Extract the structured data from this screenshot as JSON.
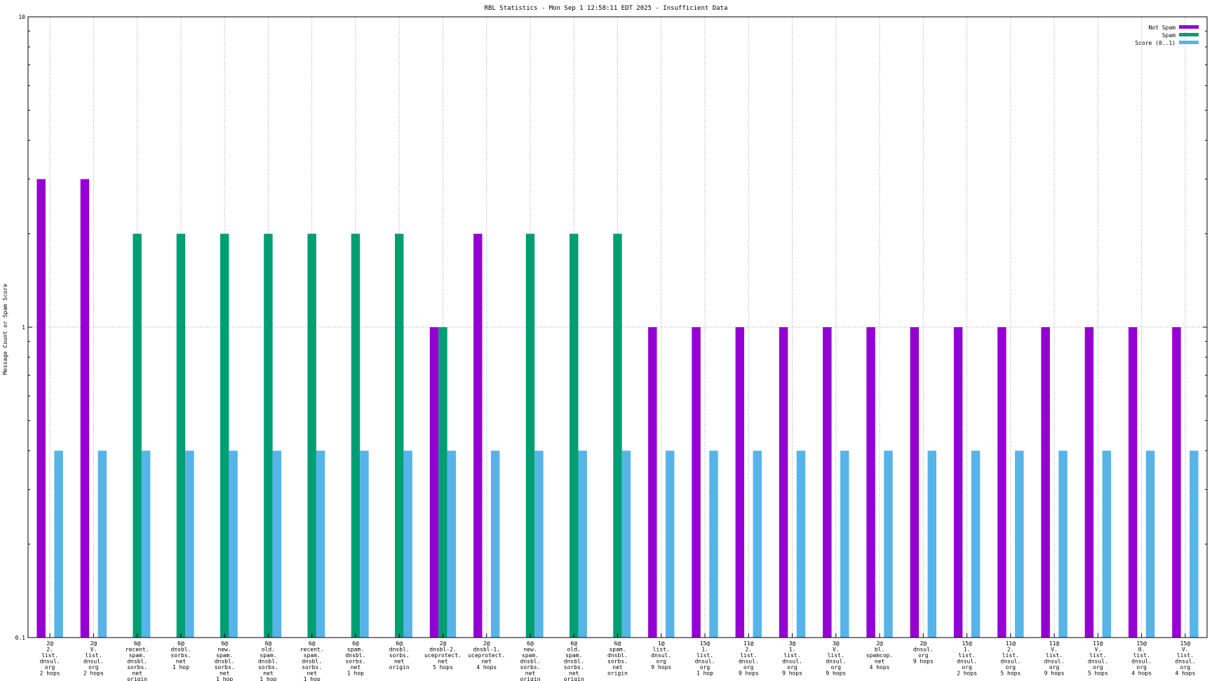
{
  "chart_data": {
    "type": "bar",
    "title": "RBL Statistics - Mon Sep  1 12:58:11 EDT 2025 - Insufficient Data",
    "ylabel": "Message Count or Spam Score",
    "xlabel": "",
    "yscale": "log",
    "ylim": [
      0.1,
      10
    ],
    "yticks": [
      "10",
      "1",
      "0.1"
    ],
    "grid": true,
    "legend_position": "top-right",
    "categories": [
      [
        "2@",
        "2.",
        "list.",
        "dnsul.",
        "org",
        "2 hops"
      ],
      [
        "2@",
        "V.",
        "list.",
        "dnsul.",
        "org",
        "2 hops"
      ],
      [
        "6@",
        "recent.",
        "spam.",
        "dnsbl.",
        "sorbs.",
        "net",
        "origin"
      ],
      [
        "6@",
        "dnsbl.",
        "sorbs.",
        "net",
        "1 hop"
      ],
      [
        "6@",
        "new.",
        "spam.",
        "dnsbl.",
        "sorbs.",
        "net",
        "1 hop"
      ],
      [
        "6@",
        "old.",
        "spam.",
        "dnsbl.",
        "sorbs.",
        "net",
        "1 hop"
      ],
      [
        "6@",
        "recent.",
        "spam.",
        "dnsbl.",
        "sorbs.",
        "net",
        "1 hop"
      ],
      [
        "6@",
        "spam.",
        "dnsbl.",
        "sorbs.",
        "net",
        "1 hop"
      ],
      [
        "6@",
        "dnsbl.",
        "sorbs.",
        "net",
        "origin"
      ],
      [
        "2@",
        "dnsbl-2.",
        "uceprotect.",
        "net",
        "5 hops"
      ],
      [
        "2@",
        "dnsbl-1.",
        "uceprotect.",
        "net",
        "4 hops"
      ],
      [
        "6@",
        "new.",
        "spam.",
        "dnsbl.",
        "sorbs.",
        "net",
        "origin"
      ],
      [
        "6@",
        "old.",
        "spam.",
        "dnsbl.",
        "sorbs.",
        "net",
        "origin"
      ],
      [
        "6@",
        "spam.",
        "dnsbl.",
        "sorbs.",
        "net",
        "origin"
      ],
      [
        "1@",
        "list.",
        "dnsul.",
        "org",
        "9 hops"
      ],
      [
        "15@",
        "1.",
        "list.",
        "dnsul.",
        "org",
        "1 hop"
      ],
      [
        "11@",
        "2.",
        "list.",
        "dnsul.",
        "org",
        "9 hops"
      ],
      [
        "3@",
        "1.",
        "list.",
        "dnsul.",
        "org",
        "9 hops"
      ],
      [
        "3@",
        "V.",
        "list.",
        "dnsul.",
        "org",
        "9 hops"
      ],
      [
        "2@",
        "bl.",
        "spamcop.",
        "net",
        "4 hops"
      ],
      [
        "2@",
        "dnsul.",
        "org",
        "9 hops"
      ],
      [
        "15@",
        "1.",
        "list.",
        "dnsul.",
        "org",
        "2 hops"
      ],
      [
        "11@",
        "2.",
        "list.",
        "dnsul.",
        "org",
        "5 hops"
      ],
      [
        "11@",
        "V.",
        "list.",
        "dnsul.",
        "org",
        "9 hops"
      ],
      [
        "11@",
        "V.",
        "list.",
        "dnsul.",
        "org",
        "5 hops"
      ],
      [
        "15@",
        "0.",
        "list.",
        "dnsul.",
        "org",
        "4 hops"
      ],
      [
        "15@",
        "V.",
        "list.",
        "dnsul.",
        "org",
        "4 hops"
      ]
    ],
    "series": [
      {
        "name": "Not Spam",
        "color": "#9400d3",
        "values": [
          3,
          3,
          null,
          null,
          null,
          null,
          null,
          null,
          null,
          1,
          2,
          null,
          null,
          null,
          1,
          1,
          1,
          1,
          1,
          1,
          1,
          1,
          1,
          1,
          1,
          1,
          1
        ]
      },
      {
        "name": "Spam",
        "color": "#009e73",
        "values": [
          null,
          null,
          2,
          2,
          2,
          2,
          2,
          2,
          2,
          1,
          null,
          2,
          2,
          2,
          null,
          null,
          null,
          null,
          null,
          null,
          null,
          null,
          null,
          null,
          null,
          null,
          null
        ]
      },
      {
        "name": "Score (0..1)",
        "color": "#56b4e9",
        "values": [
          0.4,
          0.4,
          0.4,
          0.4,
          0.4,
          0.4,
          0.4,
          0.4,
          0.4,
          0.4,
          0.4,
          0.4,
          0.4,
          0.4,
          0.4,
          0.4,
          0.4,
          0.4,
          0.4,
          0.4,
          0.4,
          0.4,
          0.4,
          0.4,
          0.4,
          0.4,
          0.4
        ]
      }
    ]
  }
}
